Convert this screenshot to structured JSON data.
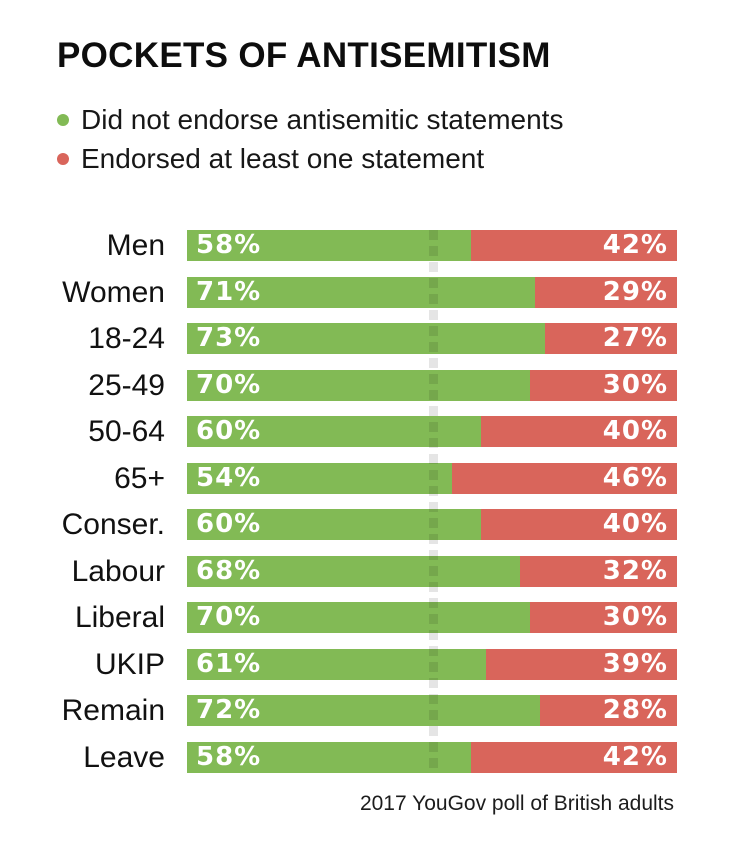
{
  "title": "POCKETS OF ANTISEMITISM",
  "legend": {
    "items": [
      {
        "label": "Did not endorse antisemitic statements",
        "color": "#82ba55"
      },
      {
        "label": "Endorsed at least one statement",
        "color": "#d9655b"
      }
    ]
  },
  "footer": {
    "caption": "2017 YouGov poll of British adults"
  },
  "colors": {
    "green": "#82ba55",
    "red": "#d9655b",
    "title_text": "#0d0d0d",
    "label_text": "#111111",
    "value_text": "#ffffff"
  },
  "chart_data": {
    "type": "bar",
    "orientation": "horizontal",
    "stacked": true,
    "title": "POCKETS OF ANTISEMITISM",
    "categories": [
      "Men",
      "Women",
      "18-24",
      "25-49",
      "50-64",
      "65+",
      "Conser.",
      "Labour",
      "Liberal",
      "UKIP",
      "Remain",
      "Leave"
    ],
    "series": [
      {
        "name": "Did not endorse antisemitic statements",
        "color": "#82ba55",
        "values": [
          58,
          71,
          73,
          70,
          60,
          54,
          60,
          68,
          70,
          61,
          72,
          58
        ]
      },
      {
        "name": "Endorsed at least one statement",
        "color": "#d9655b",
        "values": [
          42,
          29,
          27,
          30,
          40,
          46,
          40,
          32,
          30,
          39,
          28,
          42
        ]
      }
    ],
    "value_label_format": "percent",
    "xlim": [
      0,
      100
    ],
    "reference_line_pct": 50,
    "legend_position": "top-left",
    "grid": false,
    "caption": "2017 YouGov poll of British adults"
  }
}
